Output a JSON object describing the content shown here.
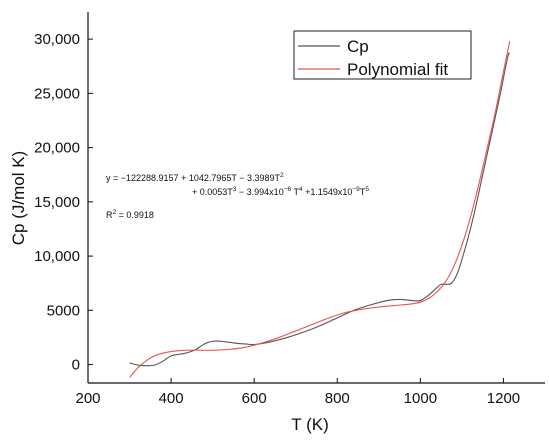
{
  "chart_data": {
    "type": "line",
    "xlabel": "T (K)",
    "ylabel": "Cp (J/mol K)",
    "xlim": [
      200,
      1300
    ],
    "ylim": [
      -1700,
      32500
    ],
    "x_ticks": [
      200,
      400,
      600,
      800,
      1000,
      1200
    ],
    "x_tick_labels": [
      "200",
      "400",
      "600",
      "800",
      "1000",
      "1200"
    ],
    "y_ticks": [
      0,
      5000,
      10000,
      15000,
      20000,
      25000,
      30000
    ],
    "y_tick_labels": [
      "0",
      "5000",
      "10,000",
      "15,000",
      "20,000",
      "25,000",
      "30,000"
    ],
    "grid": false,
    "legend_position": "top-right",
    "series": [
      {
        "name": "Cp",
        "color": "#555555",
        "x": [
          300,
          320,
          340,
          360,
          380,
          400,
          420,
          440,
          460,
          480,
          500,
          520,
          540,
          560,
          580,
          600,
          640,
          680,
          720,
          760,
          800,
          840,
          880,
          920,
          950,
          980,
          1000,
          1020,
          1040,
          1050,
          1060,
          1075,
          1090,
          1110,
          1130,
          1150,
          1170,
          1190,
          1210,
          1215
        ],
        "y": [
          150,
          -50,
          -100,
          -50,
          300,
          800,
          950,
          1100,
          1400,
          1900,
          2150,
          2150,
          2050,
          1950,
          1900,
          1850,
          2100,
          2500,
          3000,
          3600,
          4300,
          5000,
          5500,
          5900,
          6000,
          5900,
          5900,
          6400,
          7100,
          7400,
          7400,
          7500,
          8500,
          11000,
          14000,
          17500,
          21000,
          24500,
          28300,
          28700
        ]
      },
      {
        "name": "Polynomial fit",
        "color": "#e8544e",
        "x": [
          300,
          320,
          340,
          360,
          380,
          400,
          420,
          440,
          460,
          480,
          500,
          540,
          580,
          620,
          660,
          700,
          740,
          780,
          820,
          860,
          900,
          940,
          980,
          1000,
          1020,
          1040,
          1060,
          1080,
          1100,
          1120,
          1140,
          1160,
          1180,
          1200,
          1215
        ],
        "y": [
          -1200,
          -300,
          350,
          800,
          1050,
          1200,
          1280,
          1320,
          1330,
          1320,
          1320,
          1400,
          1600,
          2000,
          2500,
          3100,
          3700,
          4300,
          4800,
          5100,
          5300,
          5450,
          5600,
          5750,
          6100,
          6700,
          7600,
          9000,
          11000,
          13500,
          16500,
          19800,
          23200,
          27000,
          29800
        ]
      }
    ],
    "annotations": [
      "y = −122288.9157 + 1042.7965T − 3.3989T",
      "2",
      "+ 0.0053T",
      "3",
      " − 3.994x10",
      "−6",
      " T",
      "4",
      " +1.1549x10",
      "−9",
      "T",
      "5",
      "R",
      "2",
      " = 0.9918"
    ]
  }
}
